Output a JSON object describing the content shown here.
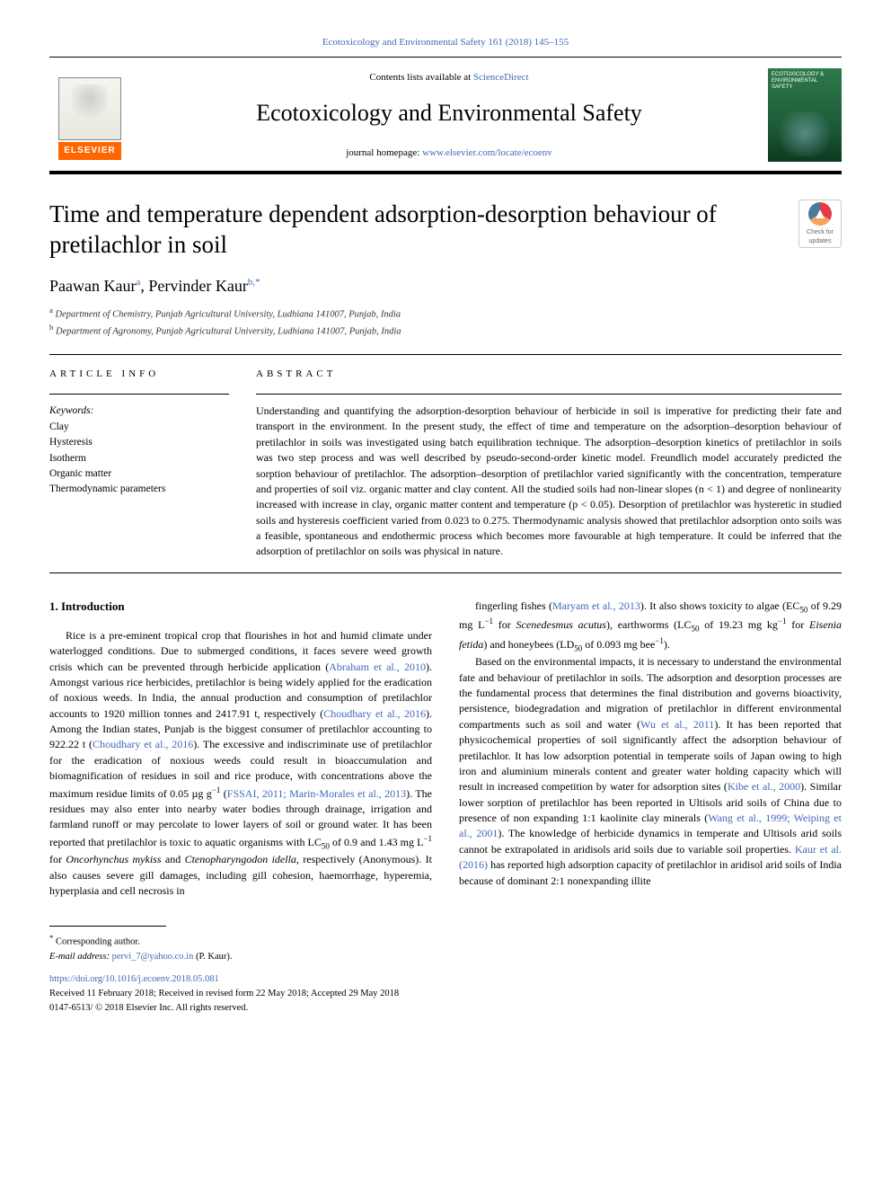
{
  "top_citation": "Ecotoxicology and Environmental Safety 161 (2018) 145–155",
  "masthead": {
    "contents_prefix": "Contents lists available at ",
    "contents_link": "ScienceDirect",
    "journal_name": "Ecotoxicology and Environmental Safety",
    "homepage_prefix": "journal homepage: ",
    "homepage_link": "www.elsevier.com/locate/ecoenv",
    "elsevier_word": "ELSEVIER",
    "cover_text": "ECOTOXICOLOGY & ENVIRONMENTAL SAFETY"
  },
  "updates_badge": {
    "line1": "Check for",
    "line2": "updates"
  },
  "article": {
    "title": "Time and temperature dependent adsorption-desorption behaviour of pretilachlor in soil",
    "authors_html": "Paawan Kaur<sup><a>a</a></sup>, Pervinder Kaur<sup><a>b</a></sup><sup>,</sup><sup><a>*</a></sup>",
    "affiliations": [
      {
        "marker": "a",
        "text": "Department of Chemistry, Punjab Agricultural University, Ludhiana 141007, Punjab, India"
      },
      {
        "marker": "b",
        "text": "Department of Agronomy, Punjab Agricultural University, Ludhiana 141007, Punjab, India"
      }
    ]
  },
  "headings": {
    "article_info": "ARTICLE INFO",
    "abstract": "ABSTRACT",
    "keywords_label": "Keywords:",
    "intro": "1. Introduction"
  },
  "keywords": [
    "Clay",
    "Hysteresis",
    "Isotherm",
    "Organic matter",
    "Thermodynamic parameters"
  ],
  "abstract": "Understanding and quantifying the adsorption-desorption behaviour of herbicide in soil is imperative for predicting their fate and transport in the environment. In the present study, the effect of time and temperature on the adsorption–desorption behaviour of pretilachlor in soils was investigated using batch equilibration technique. The adsorption–desorption kinetics of pretilachlor in soils was two step process and was well described by pseudo-second-order kinetic model. Freundlich model accurately predicted the sorption behaviour of pretilachlor. The adsorption–desorption of pretilachlor varied significantly with the concentration, temperature and properties of soil viz. organic matter and clay content. All the studied soils had non-linear slopes (n < 1) and degree of nonlinearity increased with increase in clay, organic matter content and temperature (p < 0.05). Desorption of pretilachlor was hysteretic in studied soils and hysteresis coefficient varied from 0.023 to 0.275. Thermodynamic analysis showed that pretilachlor adsorption onto soils was a feasible, spontaneous and endothermic process which becomes more favourable at high temperature. It could be inferred that the adsorption of pretilachlor on soils was physical in nature.",
  "body": {
    "col1": [
      "Rice is a pre-eminent tropical crop that flourishes in hot and humid climate under waterlogged conditions. Due to submerged conditions, it faces severe weed growth crisis which can be prevented through herbicide application (<span class=\"cite\">Abraham et al., 2010</span>). Amongst various rice herbicides, pretilachlor is being widely applied for the eradication of noxious weeds. In India, the annual production and consumption of pretilachlor accounts to 1920 million tonnes and 2417.91 t, respectively (<span class=\"cite\">Choudhary et al., 2016</span>). Among the Indian states, Punjab is the biggest consumer of pretilachlor accounting to 922.22 t (<span class=\"cite\">Choudhary et al., 2016</span>). The excessive and indiscriminate use of pretilachlor for the eradication of noxious weeds could result in bioaccumulation and biomagnification of residues in soil and rice produce, with concentrations above the maximum residue limits of 0.05 µg g<span class=\"sup\">−1</span> (<span class=\"cite\">FSSAI, 2011; Marin-Morales et al., 2013</span>). The residues may also enter into nearby water bodies through drainage, irrigation and farmland runoff or may percolate to lower layers of soil or ground water. It has been reported that pretilachlor is toxic to aquatic organisms with LC<span class=\"sub\">50</span> of 0.9 and 1.43 mg L<span class=\"sup\">−1</span> for <i>Oncorhynchus mykiss</i> and <i>Ctenopharyngodon idella</i>, respectively (Anonymous). It also causes severe gill damages, including gill cohesion, haemorrhage, hyperemia, hyperplasia and cell necrosis in"
    ],
    "col2": [
      "fingerling fishes (<span class=\"cite\">Maryam et al., 2013</span>). It also shows toxicity to algae (EC<span class=\"sub\">50</span> of 9.29 mg L<span class=\"sup\">−1</span> for <i>Scenedesmus acutus</i>), earthworms (LC<span class=\"sub\">50</span> of 19.23 mg kg<span class=\"sup\">−1</span> for <i>Eisenia fetida</i>) and honeybees (LD<span class=\"sub\">50</span> of 0.093 mg bee<span class=\"sup\">−1</span>).",
      "Based on the environmental impacts, it is necessary to understand the environmental fate and behaviour of pretilachlor in soils. The adsorption and desorption processes are the fundamental process that determines the final distribution and governs bioactivity, persistence, biodegradation and migration of pretilachlor in different environmental compartments such as soil and water (<span class=\"cite\">Wu et al., 2011</span>). It has been reported that physicochemical properties of soil significantly affect the adsorption behaviour of pretilachlor. It has low adsorption potential in temperate soils of Japan owing to high iron and aluminium minerals content and greater water holding capacity which will result in increased competition by water for adsorption sites (<span class=\"cite\">Kibe et al., 2000</span>). Similar lower sorption of pretilachlor has been reported in Ultisols arid soils of China due to presence of non expanding 1:1 kaolinite clay minerals (<span class=\"cite\">Wang et al., 1999; Weiping et al., 2001</span>). The knowledge of herbicide dynamics in temperate and Ultisols arid soils cannot be extrapolated in aridisols arid soils due to variable soil properties. <span class=\"cite\">Kaur et al. (2016)</span> has reported high adsorption capacity of pretilachlor in aridisol arid soils of India because of dominant 2:1 nonexpanding illite"
    ]
  },
  "footer": {
    "corresponding": "Corresponding author.",
    "email_label": "E-mail address:",
    "email": "pervi_7@yahoo.co.in",
    "email_name": "(P. Kaur).",
    "doi": "https://doi.org/10.1016/j.ecoenv.2018.05.081",
    "received": "Received 11 February 2018; Received in revised form 22 May 2018; Accepted 29 May 2018",
    "issn": "0147-6513/ © 2018 Elsevier Inc. All rights reserved."
  },
  "colors": {
    "link": "#4169b9",
    "elsevier_orange": "#ff6600",
    "cover_green_top": "#2d7a4a",
    "cover_green_mid": "#1e5c3a",
    "cover_green_bot": "#0c3a1f"
  }
}
